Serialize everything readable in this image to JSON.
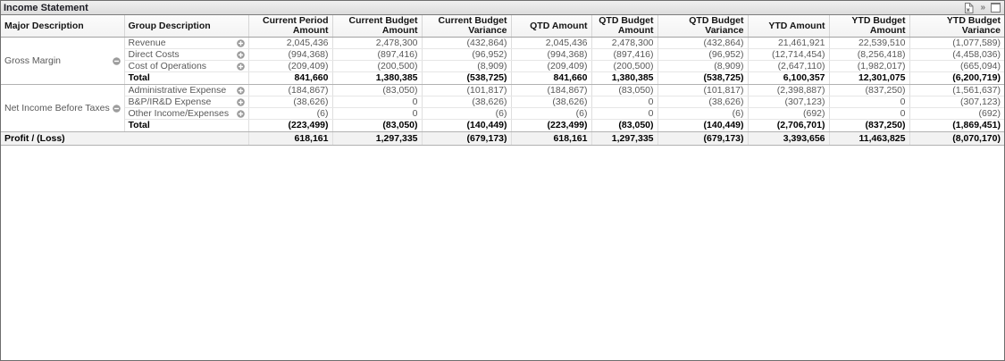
{
  "caption": {
    "title": "Income Statement",
    "icons": [
      {
        "name": "send-to-excel-icon"
      },
      {
        "name": "more-icons-icon",
        "glyph": "»"
      },
      {
        "name": "maximize-icon"
      }
    ]
  },
  "table": {
    "columns": [
      {
        "label": "Major Description",
        "align": "left"
      },
      {
        "label": "Group Description",
        "align": "left"
      },
      {
        "label": "Current Period Amount",
        "align": "right"
      },
      {
        "label": "Current Budget Amount",
        "align": "right"
      },
      {
        "label": "Current Budget Variance",
        "align": "right"
      },
      {
        "label": "QTD Amount",
        "align": "right"
      },
      {
        "label": "QTD Budget Amount",
        "align": "right"
      },
      {
        "label": "QTD Budget Variance",
        "align": "right"
      },
      {
        "label": "YTD Amount",
        "align": "right"
      },
      {
        "label": "YTD Budget Amount",
        "align": "right"
      },
      {
        "label": "YTD Budget Variance",
        "align": "right"
      }
    ],
    "groups": [
      {
        "major": "Gross Margin",
        "collapse_icon": "collapse-minus-icon",
        "rows": [
          {
            "label": "Revenue",
            "expand_icon": "expand-plus-icon",
            "values": [
              "2,045,436",
              "2,478,300",
              "(432,864)",
              "2,045,436",
              "2,478,300",
              "(432,864)",
              "21,461,921",
              "22,539,510",
              "(1,077,589)"
            ]
          },
          {
            "label": "Direct Costs",
            "expand_icon": "expand-plus-icon",
            "values": [
              "(994,368)",
              "(897,416)",
              "(96,952)",
              "(994,368)",
              "(897,416)",
              "(96,952)",
              "(12,714,454)",
              "(8,256,418)",
              "(4,458,036)"
            ]
          },
          {
            "label": "Cost of Operations",
            "expand_icon": "expand-plus-icon",
            "values": [
              "(209,409)",
              "(200,500)",
              "(8,909)",
              "(209,409)",
              "(200,500)",
              "(8,909)",
              "(2,647,110)",
              "(1,982,017)",
              "(665,094)"
            ]
          }
        ],
        "total": {
          "label": "Total",
          "values": [
            "841,660",
            "1,380,385",
            "(538,725)",
            "841,660",
            "1,380,385",
            "(538,725)",
            "6,100,357",
            "12,301,075",
            "(6,200,719)"
          ]
        }
      },
      {
        "major": "Net Income Before Taxes",
        "collapse_icon": "collapse-minus-icon",
        "rows": [
          {
            "label": "Administrative Expense",
            "expand_icon": "expand-plus-icon",
            "values": [
              "(184,867)",
              "(83,050)",
              "(101,817)",
              "(184,867)",
              "(83,050)",
              "(101,817)",
              "(2,398,887)",
              "(837,250)",
              "(1,561,637)"
            ]
          },
          {
            "label": "B&P/IR&D Expense",
            "expand_icon": "expand-plus-icon",
            "values": [
              "(38,626)",
              "0",
              "(38,626)",
              "(38,626)",
              "0",
              "(38,626)",
              "(307,123)",
              "0",
              "(307,123)"
            ]
          },
          {
            "label": "Other Income/Expenses",
            "expand_icon": "expand-plus-icon",
            "values": [
              "(6)",
              "0",
              "(6)",
              "(6)",
              "0",
              "(6)",
              "(692)",
              "0",
              "(692)"
            ]
          }
        ],
        "total": {
          "label": "Total",
          "values": [
            "(223,499)",
            "(83,050)",
            "(140,449)",
            "(223,499)",
            "(83,050)",
            "(140,449)",
            "(2,706,701)",
            "(837,250)",
            "(1,869,451)"
          ]
        }
      }
    ],
    "profit": {
      "label": "Profit / (Loss)",
      "values": [
        "618,161",
        "1,297,335",
        "(679,173)",
        "618,161",
        "1,297,335",
        "(679,173)",
        "3,393,656",
        "11,463,825",
        "(8,070,170)"
      ]
    }
  },
  "colors": {
    "caption_bg_top": "#f0f0f0",
    "caption_bg_bottom": "#dcdcdc",
    "object_border": "#6e6e6e",
    "detail_text": "#595959",
    "total_text": "#000000",
    "grid_line": "#dedede",
    "icon_gray": "#9c9c9c"
  }
}
